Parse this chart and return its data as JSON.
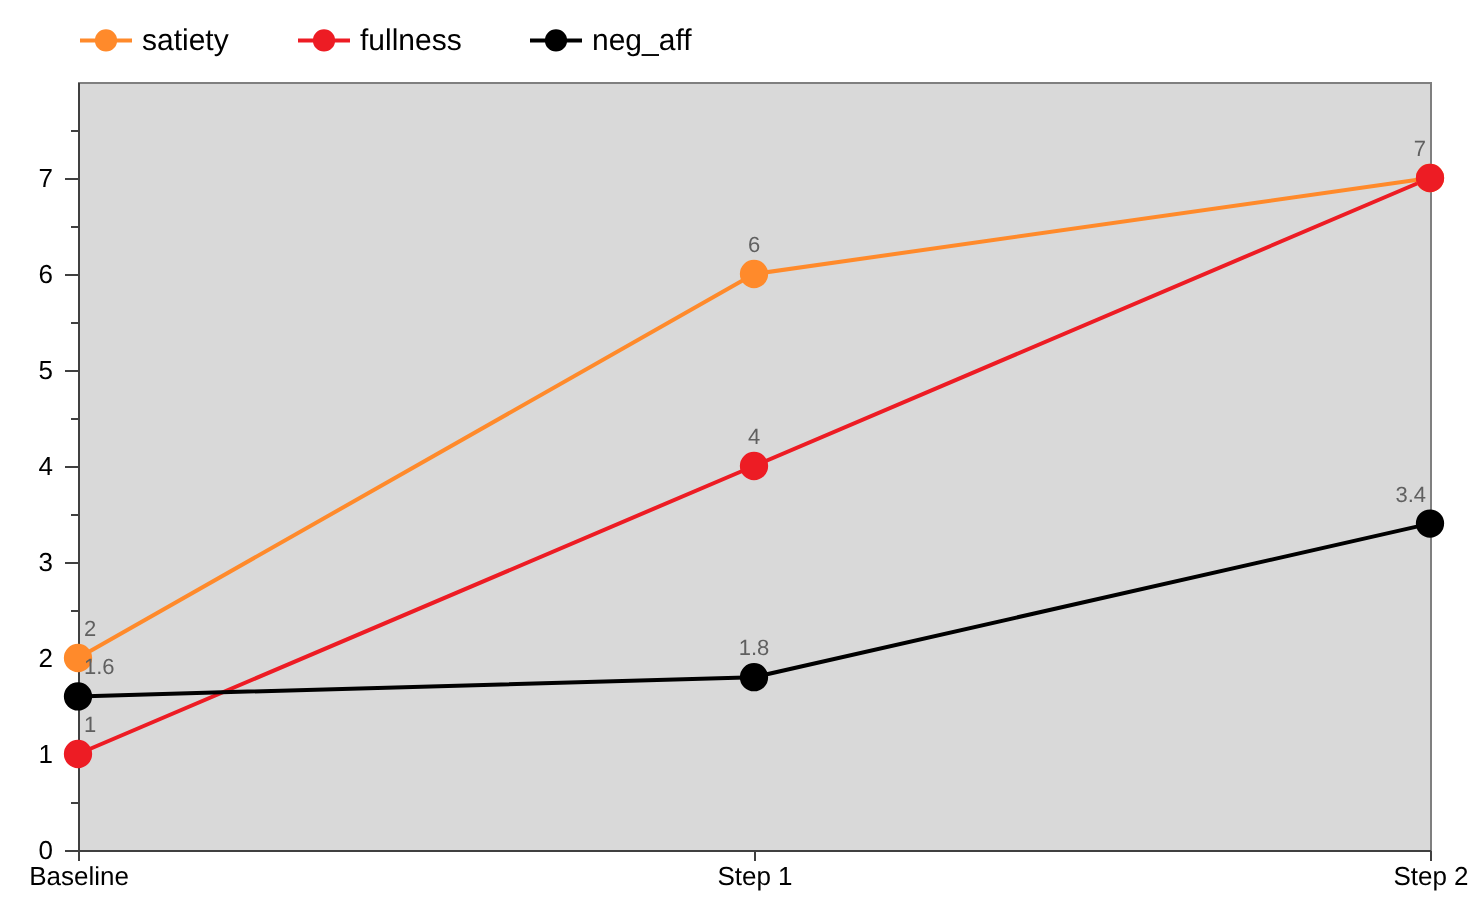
{
  "chart_data": {
    "type": "line",
    "categories": [
      "Baseline",
      "Step 1",
      "Step 2"
    ],
    "series": [
      {
        "name": "satiety",
        "color": "#ff8a2b",
        "values": [
          2,
          6,
          7
        ],
        "value_labels": [
          "2",
          "6",
          null
        ]
      },
      {
        "name": "fullness",
        "color": "#ed1c24",
        "values": [
          1,
          4,
          7
        ],
        "value_labels": [
          "1",
          "4",
          "7"
        ]
      },
      {
        "name": "neg_aff",
        "color": "#000000",
        "values": [
          1.6,
          1.8,
          3.4
        ],
        "value_labels": [
          "1.6",
          "1.8",
          "3.4"
        ]
      }
    ],
    "ylim": [
      0,
      8
    ],
    "yticks": [
      0,
      {
        "value": 0.5,
        "label": null
      },
      1,
      {
        "value": 1.5,
        "label": null
      },
      2,
      {
        "value": 2.5,
        "label": null
      },
      3,
      {
        "value": 3.5,
        "label": null
      },
      4,
      {
        "value": 4.5,
        "label": null
      },
      5,
      {
        "value": 5.5,
        "label": null
      },
      6,
      {
        "value": 6.5,
        "label": null
      },
      7,
      {
        "value": 7.5,
        "label": null
      }
    ],
    "legend": "top left",
    "marker": "circle",
    "line_style": "solid"
  }
}
